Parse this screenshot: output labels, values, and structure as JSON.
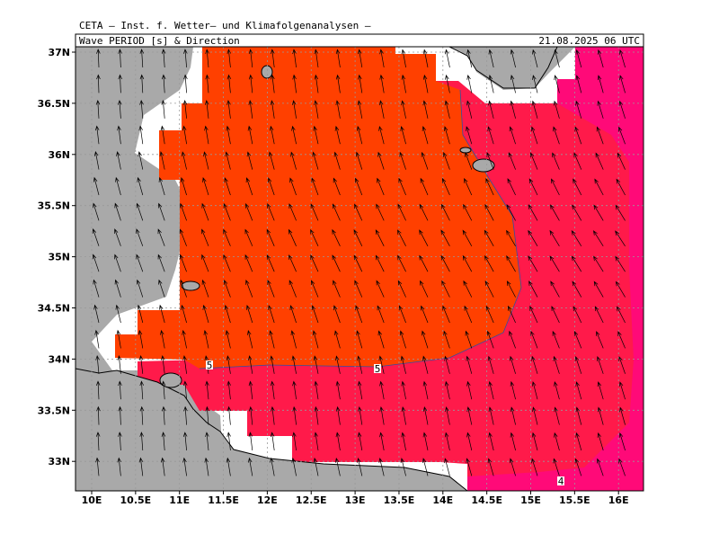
{
  "header": {
    "source": "CETA – Inst. f. Wetter– und Klimafolgenanalysen –",
    "title": "Wave PERIOD [s] & Direction",
    "valid": "21.08.2025 06 UTC"
  },
  "map": {
    "lat_labels": [
      "37N",
      "36.5N",
      "36N",
      "35.5N",
      "35N",
      "34.5N",
      "34N",
      "33.5N",
      "33N"
    ],
    "lon_labels": [
      "10E",
      "10.5E",
      "11E",
      "11.5E",
      "12E",
      "12.5E",
      "13E",
      "13.5E",
      "14E",
      "14.5E",
      "15E",
      "15.5E",
      "16E"
    ],
    "contour_labels": [
      "5",
      "5",
      "4"
    ]
  }
}
